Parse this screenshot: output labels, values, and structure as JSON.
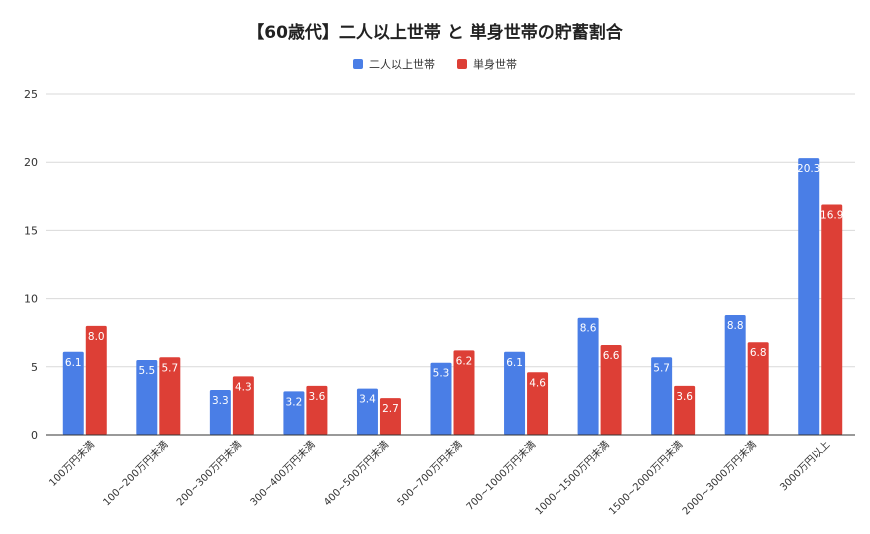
{
  "chart_data": {
    "type": "bar",
    "title": "【60歳代】二人以上世帯 と 単身世帯の貯蓄割合",
    "xlabel": "",
    "ylabel": "",
    "ylim": [
      0,
      25
    ],
    "yticks": [
      0,
      5,
      10,
      15,
      20,
      25
    ],
    "grid": true,
    "legend_position": "top-center",
    "categories": [
      "100万円未満",
      "100~200万円未満",
      "200~300万円未満",
      "300~400万円未満",
      "400~500万円未満",
      "500~700万円未満",
      "700~1000万円未満",
      "1000~1500万円未満",
      "1500~2000万円未満",
      "2000~3000万円未満",
      "3000万円以上"
    ],
    "series": [
      {
        "name": "二人以上世帯",
        "color": "#4a7ee6",
        "values": [
          6.1,
          5.5,
          3.3,
          3.2,
          3.4,
          5.3,
          6.1,
          8.6,
          5.7,
          8.8,
          20.3
        ],
        "labels": [
          "6.1",
          "5.5",
          "3.3",
          "3.2",
          "3.4",
          "5.3",
          "6.1",
          "8.6",
          "5.7",
          "8.8",
          "20.3"
        ]
      },
      {
        "name": "単身世帯",
        "color": "#dd3f36",
        "values": [
          8.0,
          5.7,
          4.3,
          3.6,
          2.7,
          6.2,
          4.6,
          6.6,
          3.6,
          6.8,
          16.9
        ],
        "labels": [
          "8.0",
          "5.7",
          "4.3",
          "3.6",
          "2.7",
          "6.2",
          "4.6",
          "6.6",
          "3.6",
          "6.8",
          "16.9"
        ]
      }
    ]
  }
}
